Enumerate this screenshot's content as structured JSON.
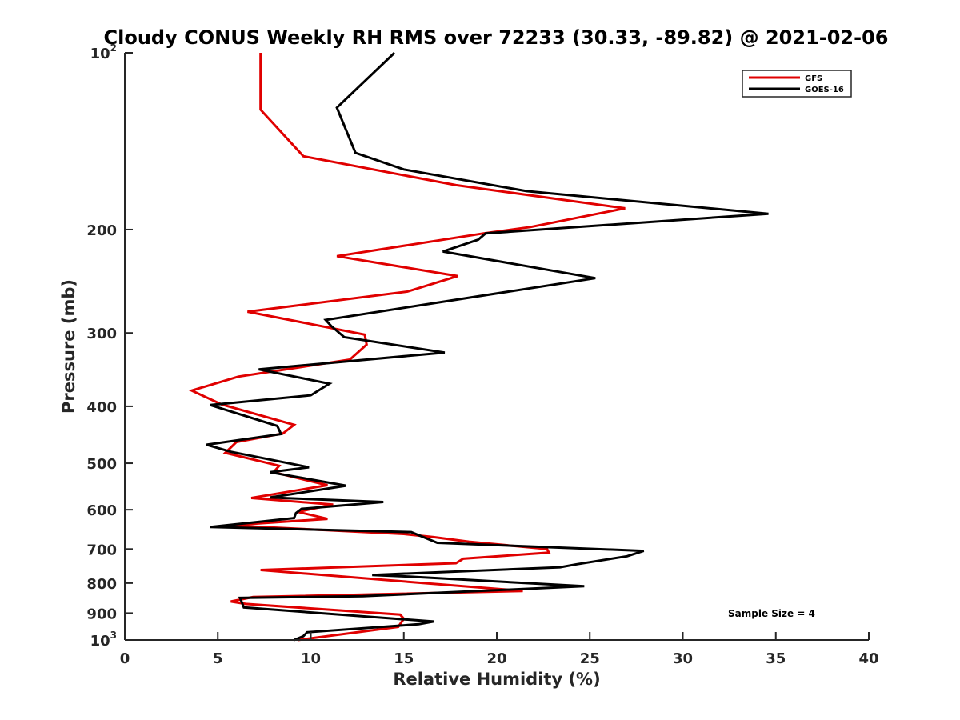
{
  "chart_data": {
    "type": "line",
    "title": "Cloudy CONUS Weekly RH RMS over 72233 (30.33, -89.82) @ 2021-02-06",
    "xlabel": "Relative Humidity (%)",
    "ylabel": "Pressure (mb)",
    "xlim": [
      0,
      40
    ],
    "ylim": [
      100,
      1000
    ],
    "yscale": "log",
    "y_reversed": true,
    "grid": false,
    "x_ticks": [
      {
        "value": 0,
        "label": "0"
      },
      {
        "value": 5,
        "label": "5"
      },
      {
        "value": 10,
        "label": "10"
      },
      {
        "value": 15,
        "label": "15"
      },
      {
        "value": 20,
        "label": "20"
      },
      {
        "value": 25,
        "label": "25"
      },
      {
        "value": 30,
        "label": "30"
      },
      {
        "value": 35,
        "label": "35"
      },
      {
        "value": 40,
        "label": "40"
      }
    ],
    "y_ticks": [
      {
        "value": 100,
        "base": "10",
        "exp": "2"
      },
      {
        "value": 200,
        "label": "200"
      },
      {
        "value": 300,
        "label": "300"
      },
      {
        "value": 400,
        "label": "400"
      },
      {
        "value": 500,
        "label": "500"
      },
      {
        "value": 600,
        "label": "600"
      },
      {
        "value": 700,
        "label": "700"
      },
      {
        "value": 800,
        "label": "800"
      },
      {
        "value": 900,
        "label": "900"
      },
      {
        "value": 1000,
        "base": "10",
        "exp": "3"
      }
    ],
    "legend_position": "top-right",
    "annotation": "Sample Size = 4",
    "series": [
      {
        "name": "GFS",
        "color": "#e00000",
        "points": [
          [
            7.3,
            100
          ],
          [
            7.3,
            125
          ],
          [
            9.6,
            150
          ],
          [
            17.8,
            168
          ],
          [
            26.9,
            184
          ],
          [
            21.8,
            198
          ],
          [
            19.3,
            203
          ],
          [
            11.4,
            222
          ],
          [
            17.9,
            240
          ],
          [
            15.2,
            255
          ],
          [
            6.6,
            276
          ],
          [
            12.9,
            302
          ],
          [
            13.0,
            314
          ],
          [
            12.1,
            333
          ],
          [
            6.1,
            356
          ],
          [
            3.6,
            376
          ],
          [
            5.2,
            397
          ],
          [
            9.1,
            430
          ],
          [
            8.5,
            445
          ],
          [
            6.0,
            460
          ],
          [
            5.4,
            480
          ],
          [
            8.3,
            505
          ],
          [
            8.0,
            518
          ],
          [
            10.9,
            545
          ],
          [
            6.8,
            573
          ],
          [
            11.2,
            588
          ],
          [
            9.3,
            605
          ],
          [
            10.9,
            622
          ],
          [
            5.6,
            638
          ],
          [
            15.0,
            660
          ],
          [
            16.6,
            668
          ],
          [
            18.5,
            680
          ],
          [
            22.7,
            700
          ],
          [
            22.8,
            710
          ],
          [
            18.2,
            727
          ],
          [
            17.8,
            740
          ],
          [
            7.3,
            760
          ],
          [
            21.4,
            825
          ],
          [
            6.9,
            845
          ],
          [
            5.7,
            860
          ],
          [
            6.5,
            868
          ],
          [
            14.8,
            905
          ],
          [
            15.0,
            920
          ],
          [
            14.7,
            950
          ],
          [
            9.3,
            1000
          ]
        ]
      },
      {
        "name": "GOES-16",
        "color": "#000000",
        "points": [
          [
            14.5,
            100
          ],
          [
            11.4,
            124
          ],
          [
            12.4,
            148
          ],
          [
            15.0,
            158
          ],
          [
            21.6,
            172
          ],
          [
            34.6,
            188
          ],
          [
            19.4,
            203
          ],
          [
            19.0,
            208
          ],
          [
            17.1,
            218
          ],
          [
            25.3,
            242
          ],
          [
            10.8,
            285
          ],
          [
            11.1,
            292
          ],
          [
            11.8,
            305
          ],
          [
            17.2,
            324
          ],
          [
            7.2,
            346
          ],
          [
            11.0,
            366
          ],
          [
            10.0,
            383
          ],
          [
            4.6,
            398
          ],
          [
            8.2,
            432
          ],
          [
            8.4,
            446
          ],
          [
            4.4,
            465
          ],
          [
            5.7,
            478
          ],
          [
            9.9,
            508
          ],
          [
            7.8,
            518
          ],
          [
            11.9,
            546
          ],
          [
            7.8,
            572
          ],
          [
            13.9,
            582
          ],
          [
            9.5,
            598
          ],
          [
            9.2,
            608
          ],
          [
            9.1,
            620
          ],
          [
            4.6,
            642
          ],
          [
            15.4,
            655
          ],
          [
            16.8,
            683
          ],
          [
            27.9,
            705
          ],
          [
            27.0,
            720
          ],
          [
            24.3,
            743
          ],
          [
            23.4,
            752
          ],
          [
            13.3,
            775
          ],
          [
            15.3,
            780
          ],
          [
            24.7,
            810
          ],
          [
            12.8,
            842
          ],
          [
            6.2,
            848
          ],
          [
            6.4,
            880
          ],
          [
            16.6,
            930
          ],
          [
            15.8,
            940
          ],
          [
            9.8,
            970
          ],
          [
            9.6,
            985
          ],
          [
            9.1,
            1000
          ]
        ]
      }
    ]
  }
}
